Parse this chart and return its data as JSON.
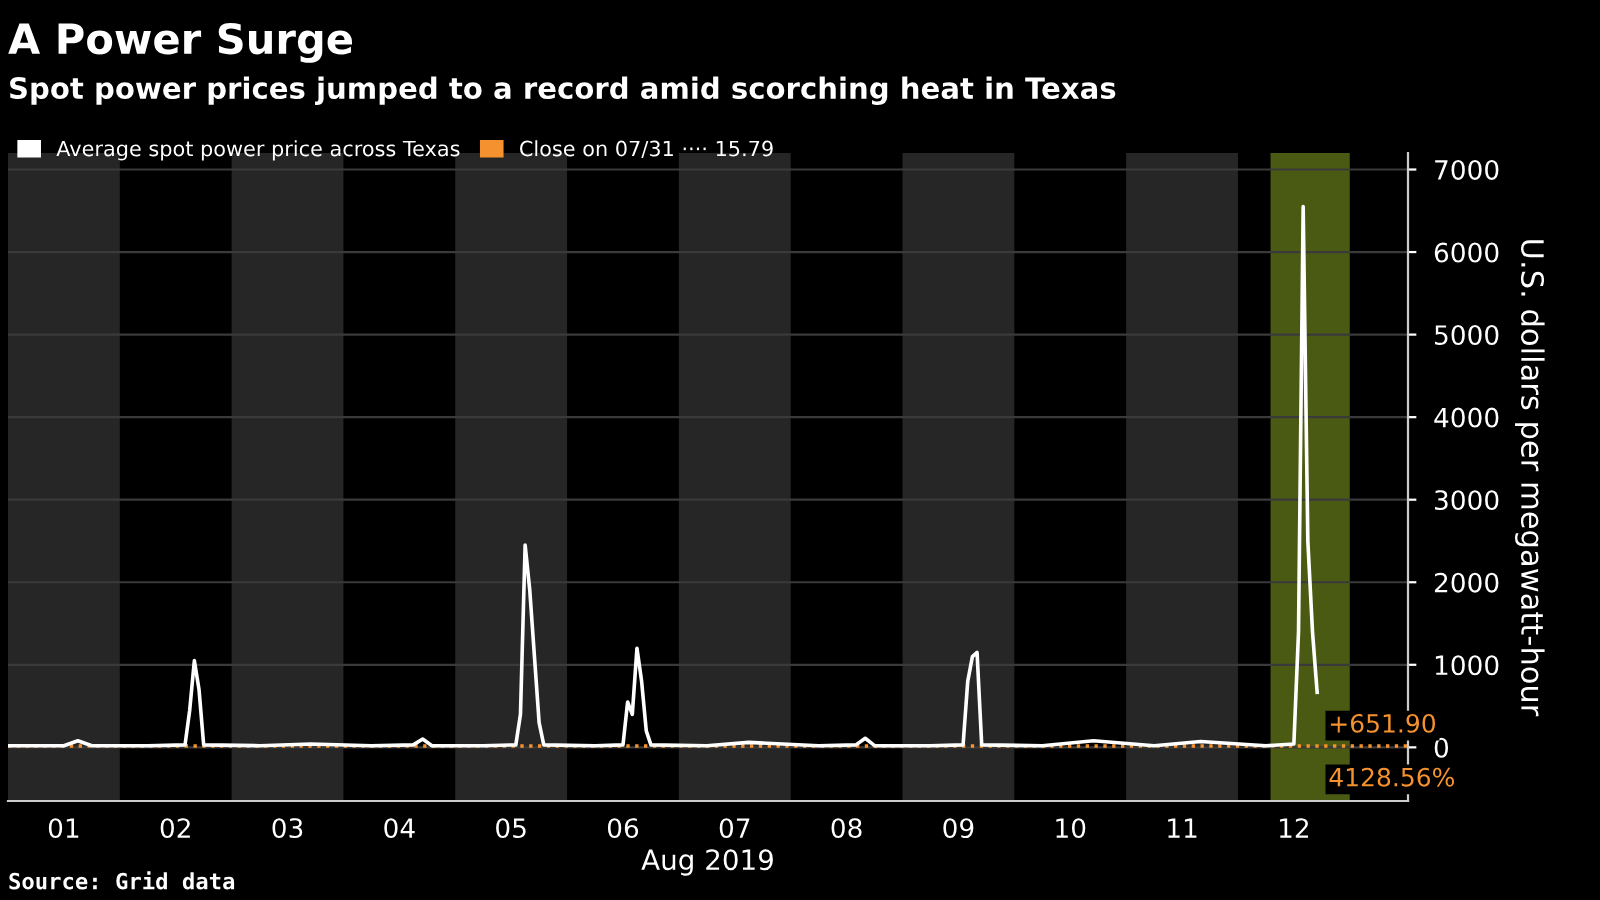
{
  "chart_data": {
    "type": "line",
    "title": "A Power Surge",
    "subtitle": "Spot power prices jumped to a record amid scorching heat in Texas",
    "ylabel": "U.S. dollars per megawatt-hour",
    "xlabel": "Aug 2019",
    "x": [
      "2019-08-01T00:00",
      "2019-08-01T12:00",
      "2019-08-01T15:00",
      "2019-08-01T18:00",
      "2019-08-02T06:00",
      "2019-08-02T14:00",
      "2019-08-02T15:00",
      "2019-08-02T16:00",
      "2019-08-02T17:00",
      "2019-08-02T18:00",
      "2019-08-03T06:00",
      "2019-08-03T17:00",
      "2019-08-04T06:00",
      "2019-08-04T15:00",
      "2019-08-04T17:00",
      "2019-08-04T19:00",
      "2019-08-05T06:00",
      "2019-08-05T13:00",
      "2019-08-05T14:00",
      "2019-08-05T15:00",
      "2019-08-05T16:00",
      "2019-08-05T18:00",
      "2019-08-05T19:00",
      "2019-08-06T06:00",
      "2019-08-06T12:00",
      "2019-08-06T13:00",
      "2019-08-06T14:00",
      "2019-08-06T15:00",
      "2019-08-06T16:00",
      "2019-08-06T17:00",
      "2019-08-06T18:00",
      "2019-08-07T06:00",
      "2019-08-07T15:00",
      "2019-08-08T06:00",
      "2019-08-08T14:00",
      "2019-08-08T16:00",
      "2019-08-08T18:00",
      "2019-08-09T06:00",
      "2019-08-09T13:00",
      "2019-08-09T14:00",
      "2019-08-09T15:00",
      "2019-08-09T16:00",
      "2019-08-09T17:00",
      "2019-08-10T06:00",
      "2019-08-10T17:00",
      "2019-08-11T06:00",
      "2019-08-11T16:00",
      "2019-08-12T06:00",
      "2019-08-12T12:00",
      "2019-08-12T13:00",
      "2019-08-12T14:00",
      "2019-08-12T15:00",
      "2019-08-12T16:00",
      "2019-08-12T17:00"
    ],
    "series": [
      {
        "name": "Average spot power price across Texas",
        "color": "#ffffff",
        "values": [
          20,
          20,
          80,
          20,
          20,
          30,
          450,
          1050,
          700,
          30,
          20,
          40,
          20,
          30,
          100,
          20,
          20,
          30,
          400,
          2450,
          1900,
          300,
          30,
          20,
          30,
          550,
          400,
          1200,
          800,
          200,
          30,
          20,
          60,
          20,
          30,
          110,
          20,
          20,
          30,
          800,
          1100,
          1150,
          30,
          20,
          80,
          20,
          70,
          20,
          40,
          1400,
          6550,
          2500,
          1400,
          667.69
        ]
      }
    ],
    "xlim": [
      "2019-08-01T00:00",
      "2019-08-13T12:30"
    ],
    "xticks": [
      {
        "value": "2019-08-01T12:00",
        "label": "01"
      },
      {
        "value": "2019-08-02T12:00",
        "label": "02"
      },
      {
        "value": "2019-08-03T12:00",
        "label": "03"
      },
      {
        "value": "2019-08-04T12:00",
        "label": "04"
      },
      {
        "value": "2019-08-05T12:00",
        "label": "05"
      },
      {
        "value": "2019-08-06T12:00",
        "label": "06"
      },
      {
        "value": "2019-08-07T12:00",
        "label": "07"
      },
      {
        "value": "2019-08-08T12:00",
        "label": "08"
      },
      {
        "value": "2019-08-09T12:00",
        "label": "09"
      },
      {
        "value": "2019-08-10T12:00",
        "label": "10"
      },
      {
        "value": "2019-08-11T12:00",
        "label": "11"
      },
      {
        "value": "2019-08-12T12:00",
        "label": "12"
      }
    ],
    "ylim": [
      -650,
      7200
    ],
    "yticks": [
      0,
      1000,
      2000,
      3000,
      4000,
      5000,
      6000,
      7000
    ],
    "ref_lines": [
      {
        "axis": "y",
        "value": 15.79,
        "label": "Close on 07/31 ···· 15.79",
        "color": "#f5922f",
        "line_style": "dotted"
      }
    ],
    "bands": [
      {
        "axis": "x",
        "from": "2019-08-01T00:00",
        "to": "2019-08-02T00:00",
        "color": "#262626"
      },
      {
        "axis": "x",
        "from": "2019-08-03T00:00",
        "to": "2019-08-04T00:00",
        "color": "#262626"
      },
      {
        "axis": "x",
        "from": "2019-08-05T00:00",
        "to": "2019-08-06T00:00",
        "color": "#262626"
      },
      {
        "axis": "x",
        "from": "2019-08-07T00:00",
        "to": "2019-08-08T00:00",
        "color": "#262626"
      },
      {
        "axis": "x",
        "from": "2019-08-09T00:00",
        "to": "2019-08-10T00:00",
        "color": "#262626"
      },
      {
        "axis": "x",
        "from": "2019-08-11T00:00",
        "to": "2019-08-12T00:00",
        "color": "#262626"
      },
      {
        "axis": "x",
        "from": "2019-08-12T07:00",
        "to": "2019-08-13T00:00",
        "color": "#4b5a12"
      }
    ],
    "annotations": [
      {
        "text": "+651.90",
        "x": "2019-08-12T17:00",
        "y": 667.69
      },
      {
        "text": "4128.56%",
        "x": "2019-08-12T17:00",
        "y": 15.79
      },
      "Source: Grid data"
    ],
    "grid": "y",
    "legend": "top left",
    "line_style": "solid",
    "marker": "none"
  }
}
